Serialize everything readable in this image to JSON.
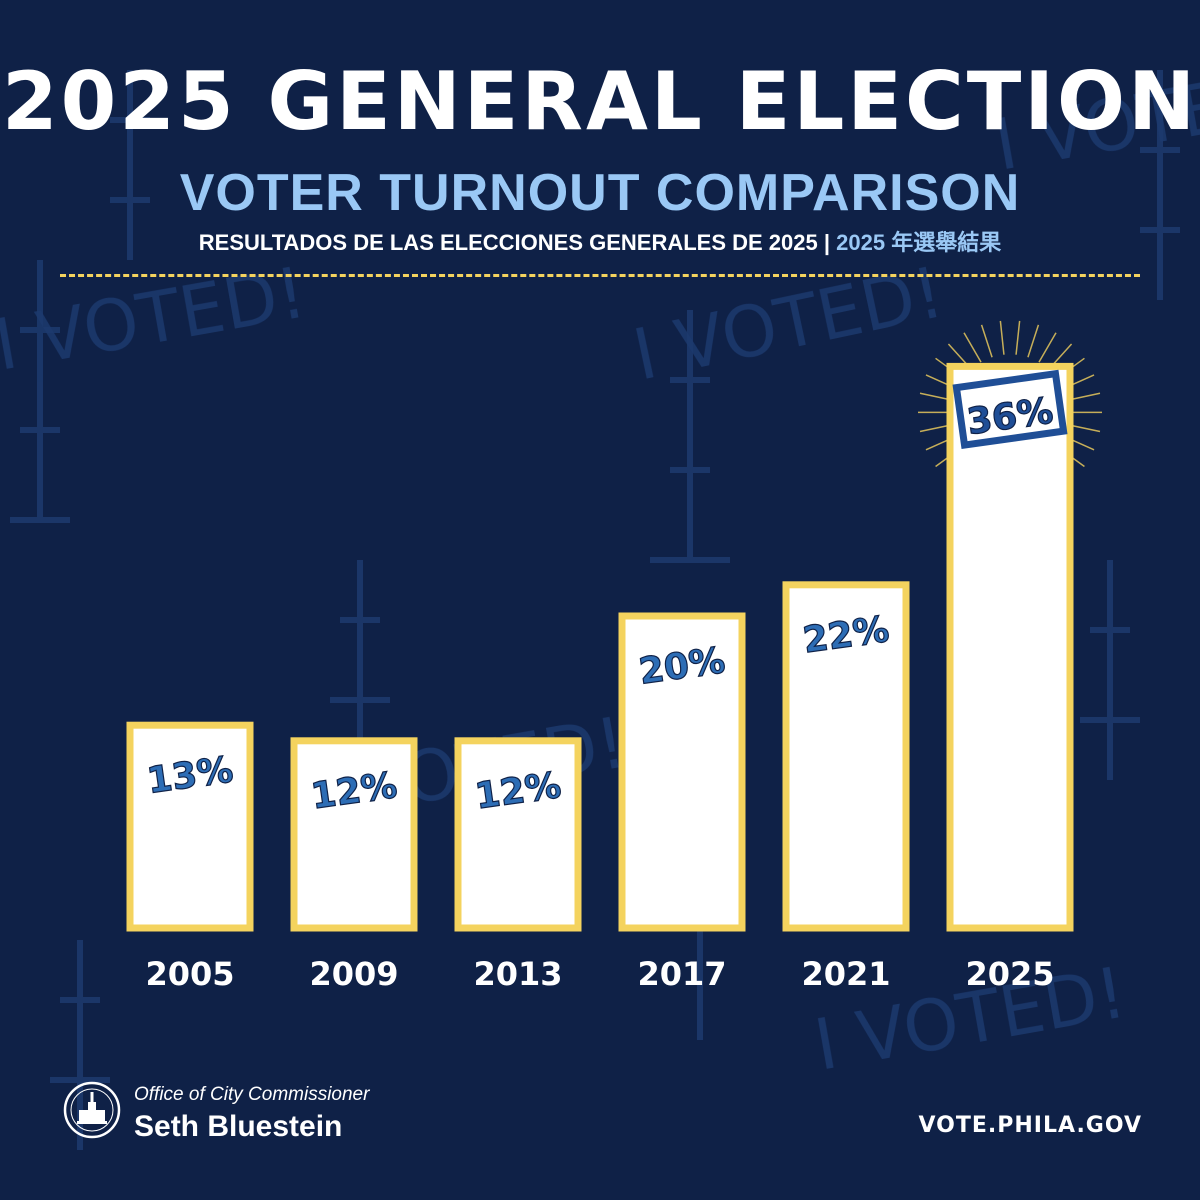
{
  "header": {
    "title": "2025 GENERAL ELECTION",
    "subtitle": "VOTER TURNOUT COMPARISON",
    "translation_es": "RESULTADOS DE LAS ELECCIONES GENERALES DE 2025 | ",
    "translation_zh": "2025 年選舉結果"
  },
  "background_text": "I VOTED!",
  "footer": {
    "office": "Office of City Commissioner",
    "name": "Seth Bluestein",
    "url": "VOTE.PHILA.GOV"
  },
  "colors": {
    "background": "#0f2147",
    "bar_fill": "#ffffff",
    "bar_border": "#f4d35e",
    "label_blue": "#2d6db5",
    "highlight_blue": "#1f4e96",
    "accent_light_blue": "#9ac8f5"
  },
  "chart_data": {
    "type": "bar",
    "title": "2025 GENERAL ELECTION",
    "subtitle": "VOTER TURNOUT COMPARISON",
    "categories": [
      "2005",
      "2009",
      "2013",
      "2017",
      "2021",
      "2025"
    ],
    "values": [
      13,
      12,
      12,
      20,
      22,
      36
    ],
    "data_labels": [
      "13%",
      "12%",
      "12%",
      "20%",
      "22%",
      "36%"
    ],
    "highlight_category": "2025",
    "xlabel": "",
    "ylabel": "",
    "ylim": [
      0,
      40
    ],
    "grid": false,
    "legend": "none"
  }
}
